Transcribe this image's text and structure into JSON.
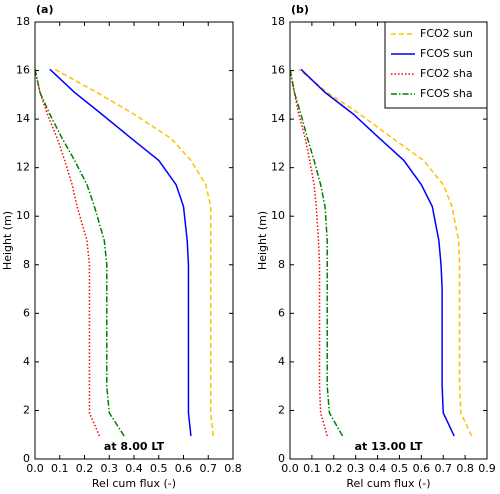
{
  "chart_data": [
    {
      "type": "line",
      "panel_label": "(a)",
      "annotation": "at  8.00 LT",
      "xlabel": "Rel cum flux (-)",
      "ylabel": "Height (m)",
      "xlim": [
        0,
        0.8
      ],
      "xticks": [
        {
          "value": 0,
          "label": "0.0"
        },
        0.1,
        0.2,
        0.3,
        0.4,
        0.5,
        0.6,
        0.7,
        0.8
      ],
      "ylim": [
        0,
        18
      ],
      "yticks": [
        0,
        2,
        4,
        6,
        8,
        10,
        12,
        14,
        16,
        18
      ],
      "y": [
        0.95,
        1.9,
        3,
        4,
        5,
        6,
        7,
        8,
        9,
        10.4,
        11.3,
        12.3,
        13.2,
        14.2,
        15.1,
        16.05
      ],
      "series": [
        {
          "color": "#ffc000",
          "dash": "dashed",
          "values": [
            0.72,
            0.71,
            0.71,
            0.71,
            0.71,
            0.71,
            0.71,
            0.71,
            0.71,
            0.71,
            0.69,
            0.63,
            0.55,
            0.4,
            0.25,
            0.08
          ]
        },
        {
          "color": "#0000ff",
          "dash": "solid",
          "values": [
            0.63,
            0.62,
            0.62,
            0.62,
            0.62,
            0.62,
            0.62,
            0.62,
            0.615,
            0.6,
            0.57,
            0.5,
            0.39,
            0.27,
            0.16,
            0.06
          ]
        },
        {
          "color": "#ff0000",
          "dash": "dotted",
          "values": [
            0.26,
            0.22,
            0.22,
            0.22,
            0.22,
            0.22,
            0.22,
            0.22,
            0.21,
            0.17,
            0.15,
            0.12,
            0.09,
            0.05,
            0.02,
            0.0
          ]
        },
        {
          "color": "#008000",
          "dash": "dashdot",
          "values": [
            0.36,
            0.3,
            0.29,
            0.29,
            0.29,
            0.29,
            0.29,
            0.29,
            0.28,
            0.24,
            0.21,
            0.16,
            0.11,
            0.06,
            0.02,
            0.0
          ]
        }
      ]
    },
    {
      "type": "line",
      "panel_label": "(b)",
      "annotation": "at 13.00 LT",
      "xlabel": "Rel cum flux (-)",
      "ylabel": "Height (m)",
      "xlim": [
        0,
        0.9
      ],
      "xticks": [
        {
          "value": 0,
          "label": "0.0"
        },
        0.1,
        0.2,
        0.3,
        0.4,
        0.5,
        0.6,
        0.7,
        0.8,
        0.9
      ],
      "ylim": [
        0,
        18
      ],
      "yticks": [
        0,
        2,
        4,
        6,
        8,
        10,
        12,
        14,
        16,
        18
      ],
      "legend": "upper right",
      "y": [
        0.95,
        1.9,
        3,
        4,
        5,
        6,
        7,
        8,
        9,
        10.4,
        11.3,
        12.3,
        13.2,
        14.2,
        15.1,
        16.05
      ],
      "series": [
        {
          "name": "FCO2 sun",
          "color": "#ffc000",
          "dash": "dashed",
          "values": [
            0.83,
            0.78,
            0.775,
            0.775,
            0.775,
            0.775,
            0.775,
            0.775,
            0.77,
            0.74,
            0.7,
            0.61,
            0.47,
            0.32,
            0.17,
            0.04
          ]
        },
        {
          "name": "FCOS sun",
          "color": "#0000ff",
          "dash": "solid",
          "values": [
            0.75,
            0.7,
            0.695,
            0.695,
            0.695,
            0.695,
            0.695,
            0.69,
            0.68,
            0.65,
            0.6,
            0.52,
            0.41,
            0.29,
            0.16,
            0.05
          ]
        },
        {
          "name": "FCO2 sha",
          "color": "#ff0000",
          "dash": "dotted",
          "values": [
            0.17,
            0.14,
            0.135,
            0.135,
            0.135,
            0.135,
            0.135,
            0.135,
            0.13,
            0.12,
            0.11,
            0.09,
            0.07,
            0.04,
            0.02,
            0.0
          ]
        },
        {
          "name": "FCOS sha",
          "color": "#008000",
          "dash": "dashdot",
          "values": [
            0.24,
            0.18,
            0.17,
            0.17,
            0.17,
            0.17,
            0.17,
            0.17,
            0.17,
            0.16,
            0.14,
            0.11,
            0.08,
            0.05,
            0.02,
            0.0
          ]
        }
      ]
    }
  ]
}
